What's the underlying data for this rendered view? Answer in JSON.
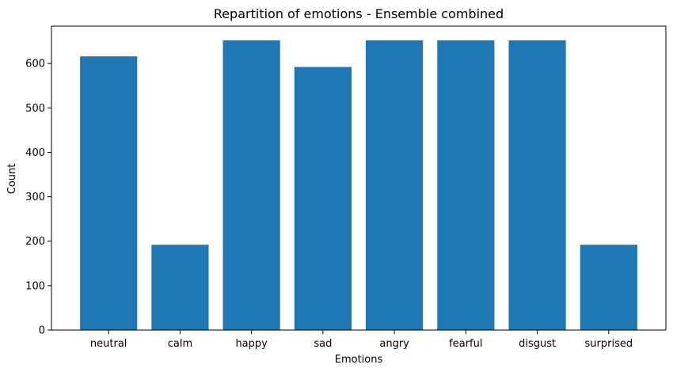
{
  "chart_data": {
    "type": "bar",
    "title": "Repartition of emotions - Ensemble combined",
    "xlabel": "Emotions",
    "ylabel": "Count",
    "categories": [
      "neutral",
      "calm",
      "happy",
      "sad",
      "angry",
      "fearful",
      "disgust",
      "surprised"
    ],
    "values": [
      616,
      192,
      652,
      592,
      652,
      652,
      652,
      192
    ],
    "ylim": [
      0,
      684
    ],
    "yticks": [
      0,
      100,
      200,
      300,
      400,
      500,
      600
    ],
    "grid": false,
    "bar_color": "#1f77b4"
  }
}
